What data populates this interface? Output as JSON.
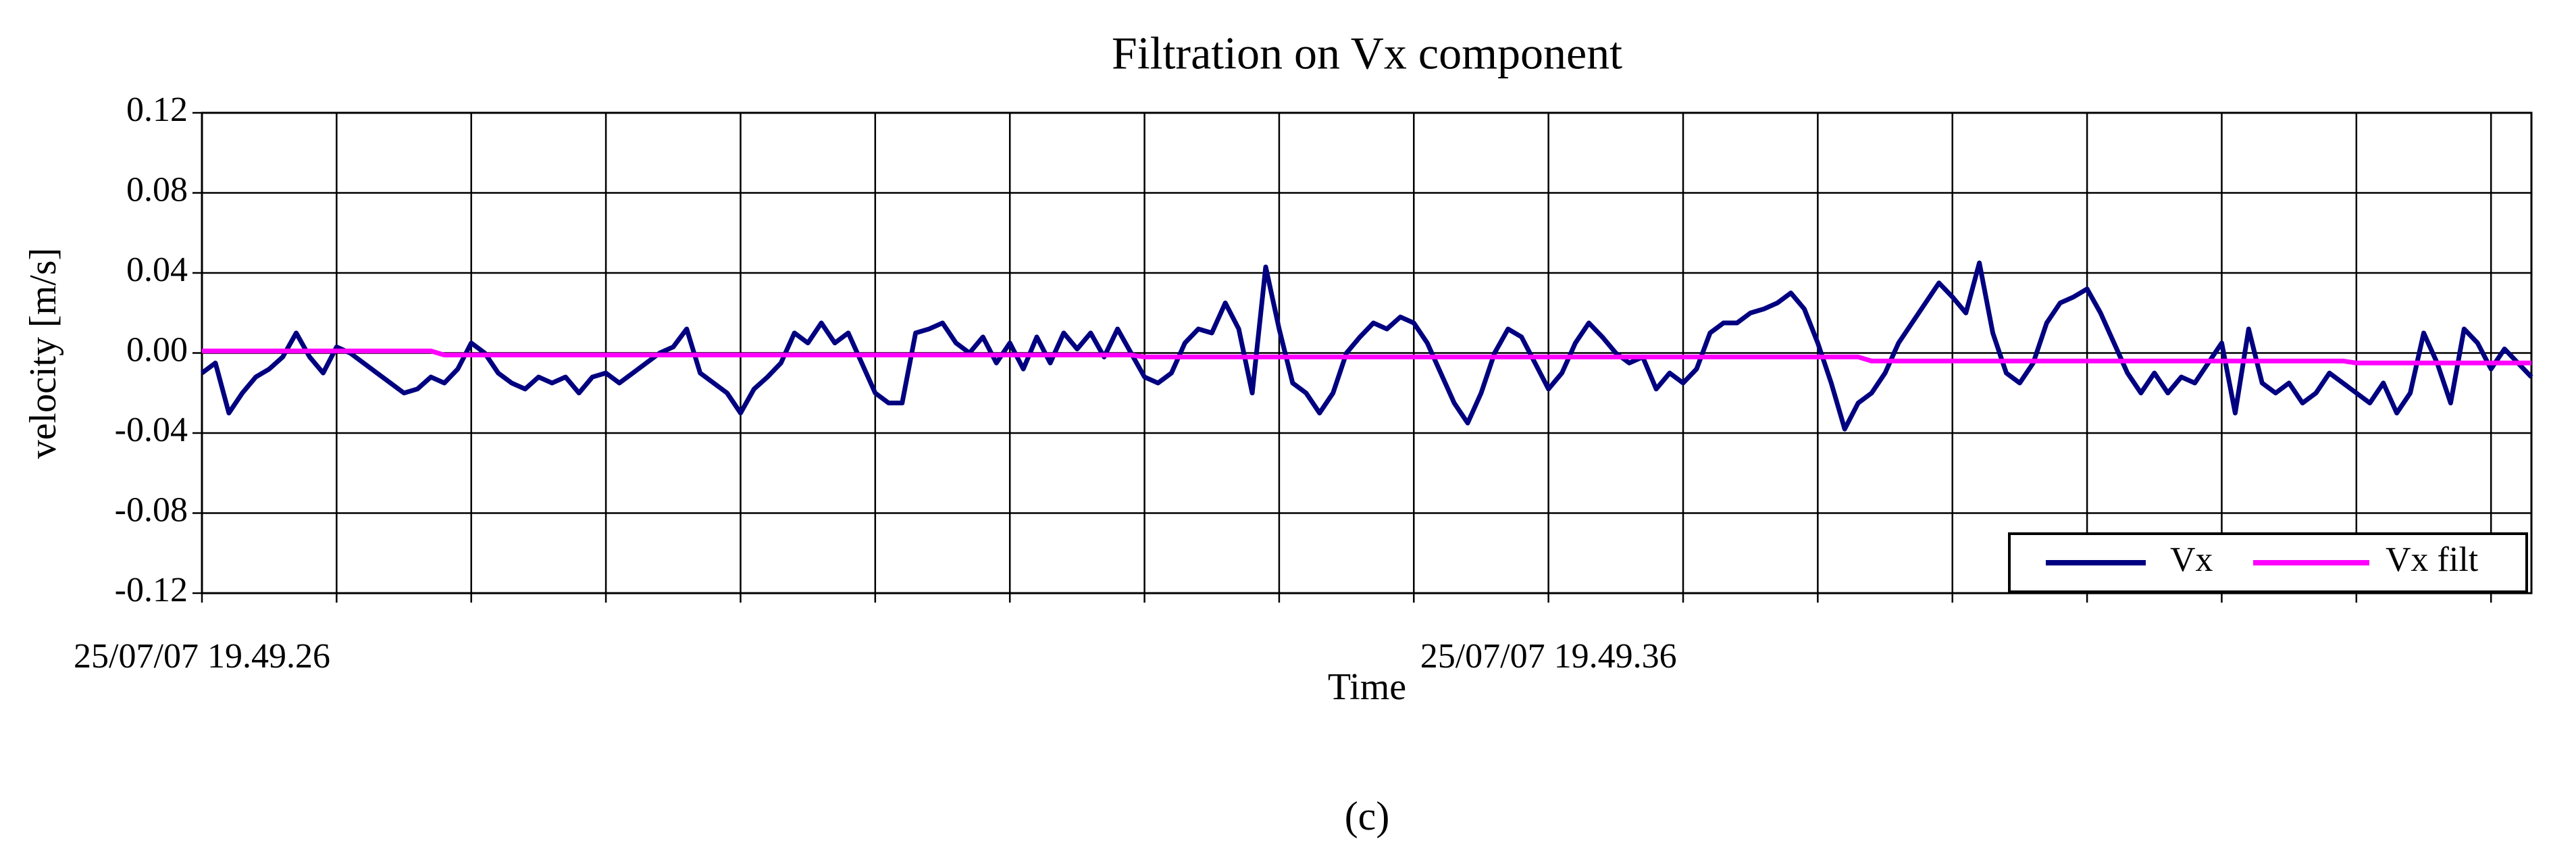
{
  "chart_data": {
    "type": "line",
    "title": "Filtration on Vx component",
    "x_label": "Time",
    "y_label": "velocity [m/s]",
    "caption": "(c)",
    "categories": [
      "25/07/07 19.49.26",
      null,
      null,
      null,
      null,
      null,
      null,
      null,
      null,
      null,
      null,
      null,
      null,
      null,
      null,
      null,
      null,
      null,
      null,
      null,
      null,
      null,
      null,
      null,
      null,
      null,
      null,
      null,
      null,
      null,
      null,
      null,
      null,
      null,
      null,
      null,
      null,
      null,
      null,
      null,
      null,
      null,
      null,
      null,
      null,
      null,
      null,
      null,
      null,
      null,
      null,
      null,
      null,
      null,
      null,
      null,
      null,
      null,
      null,
      null,
      null,
      null,
      null,
      null,
      null,
      null,
      null,
      null,
      null,
      null,
      null,
      null,
      null,
      null,
      null,
      null,
      null,
      null,
      null,
      null,
      null,
      null,
      null,
      null,
      null,
      null,
      null,
      null,
      null,
      null,
      null,
      null,
      null,
      null,
      null,
      null,
      null,
      null,
      null,
      null,
      "25/07/07 19.49.36",
      null,
      null,
      null,
      null,
      null,
      null,
      null,
      null,
      null,
      null,
      null,
      null,
      null,
      null,
      null,
      null,
      null,
      null,
      null,
      null,
      null,
      null,
      null,
      null,
      null,
      null,
      null,
      null,
      null,
      null,
      null,
      null,
      null,
      null,
      null,
      null,
      null,
      null,
      null,
      null,
      null,
      null,
      null,
      null,
      null,
      null,
      null,
      null,
      null,
      null,
      null,
      null,
      null,
      null,
      null,
      null,
      null,
      null,
      null,
      null,
      null,
      null,
      null,
      null,
      null,
      null,
      null,
      null,
      null,
      null,
      null,
      null,
      null
    ],
    "series": [
      {
        "name": "Vx",
        "color": "#000080",
        "values": [
          -0.01,
          -0.005,
          -0.03,
          -0.02,
          -0.012,
          -0.008,
          -0.002,
          0.01,
          -0.002,
          -0.01,
          0.003,
          0,
          -0.005,
          -0.01,
          -0.015,
          -0.02,
          -0.018,
          -0.012,
          -0.015,
          -0.008,
          0.005,
          0,
          -0.01,
          -0.015,
          -0.018,
          -0.012,
          -0.015,
          -0.012,
          -0.02,
          -0.012,
          -0.01,
          -0.015,
          -0.01,
          -0.005,
          0,
          0.003,
          0.012,
          -0.01,
          -0.015,
          -0.02,
          -0.03,
          -0.018,
          -0.012,
          -0.005,
          0.01,
          0.005,
          0.015,
          0.005,
          0.01,
          -0.005,
          -0.02,
          -0.025,
          -0.025,
          0.01,
          0.012,
          0.015,
          0.005,
          0,
          0.008,
          -0.005,
          0.005,
          -0.008,
          0.008,
          -0.005,
          0.01,
          0.002,
          0.01,
          -0.002,
          0.012,
          0,
          -0.012,
          -0.015,
          -0.01,
          0.005,
          0.012,
          0.01,
          0.025,
          0.012,
          -0.02,
          0.043,
          0.012,
          -0.015,
          -0.02,
          -0.03,
          -0.02,
          0,
          0.008,
          0.015,
          0.012,
          0.018,
          0.015,
          0.005,
          -0.01,
          -0.025,
          -0.035,
          -0.02,
          0,
          0.012,
          0.008,
          -0.005,
          -0.018,
          -0.01,
          0.005,
          0.015,
          0.008,
          0,
          -0.005,
          -0.002,
          -0.018,
          -0.01,
          -0.015,
          -0.008,
          0.01,
          0.015,
          0.015,
          0.02,
          0.022,
          0.025,
          0.03,
          0.022,
          0.005,
          -0.015,
          -0.038,
          -0.025,
          -0.02,
          -0.01,
          0.005,
          0.015,
          0.025,
          0.035,
          0.028,
          0.02,
          0.045,
          0.01,
          -0.01,
          -0.015,
          -0.005,
          0.015,
          0.025,
          0.028,
          0.032,
          0.02,
          0.005,
          -0.01,
          -0.02,
          -0.01,
          -0.02,
          -0.012,
          -0.015,
          -0.005,
          0.005,
          -0.03,
          0.012,
          -0.015,
          -0.02,
          -0.015,
          -0.025,
          -0.02,
          -0.01,
          -0.015,
          -0.02,
          -0.025,
          -0.015,
          -0.03,
          -0.02,
          0.01,
          -0.005,
          -0.025,
          0.012,
          0.005,
          -0.008,
          0.002,
          -0.005,
          -0.012
        ]
      },
      {
        "name": "Vx filt",
        "color": "#ff00ff",
        "values": [
          0.001,
          0.001,
          0.001,
          0.001,
          0.001,
          0.001,
          0.001,
          0.001,
          0.001,
          0.001,
          0.001,
          0.001,
          0.001,
          0.001,
          0.001,
          0.001,
          0.001,
          0.001,
          -0.001,
          -0.001,
          -0.001,
          -0.001,
          -0.001,
          -0.001,
          -0.001,
          -0.001,
          -0.001,
          -0.001,
          -0.001,
          -0.001,
          -0.001,
          -0.001,
          -0.001,
          -0.001,
          -0.001,
          -0.001,
          -0.001,
          -0.001,
          -0.001,
          -0.001,
          -0.001,
          -0.001,
          -0.001,
          -0.001,
          -0.001,
          -0.001,
          -0.001,
          -0.001,
          -0.001,
          -0.001,
          -0.001,
          -0.001,
          -0.001,
          -0.001,
          -0.001,
          -0.001,
          -0.001,
          -0.001,
          -0.001,
          -0.001,
          -0.001,
          -0.001,
          -0.001,
          -0.001,
          -0.001,
          -0.001,
          -0.001,
          -0.001,
          -0.001,
          -0.001,
          -0.002,
          -0.002,
          -0.002,
          -0.002,
          -0.002,
          -0.002,
          -0.002,
          -0.002,
          -0.002,
          -0.002,
          -0.002,
          -0.002,
          -0.002,
          -0.002,
          -0.002,
          -0.002,
          -0.002,
          -0.002,
          -0.002,
          -0.002,
          -0.002,
          -0.002,
          -0.002,
          -0.002,
          -0.002,
          -0.002,
          -0.002,
          -0.002,
          -0.002,
          -0.002,
          -0.002,
          -0.002,
          -0.002,
          -0.002,
          -0.002,
          -0.002,
          -0.002,
          -0.002,
          -0.002,
          -0.002,
          -0.002,
          -0.002,
          -0.002,
          -0.002,
          -0.002,
          -0.002,
          -0.002,
          -0.002,
          -0.002,
          -0.002,
          -0.002,
          -0.002,
          -0.002,
          -0.002,
          -0.004,
          -0.004,
          -0.004,
          -0.004,
          -0.004,
          -0.004,
          -0.004,
          -0.004,
          -0.004,
          -0.004,
          -0.004,
          -0.004,
          -0.004,
          -0.004,
          -0.004,
          -0.004,
          -0.004,
          -0.004,
          -0.004,
          -0.004,
          -0.004,
          -0.004,
          -0.004,
          -0.004,
          -0.004,
          -0.004,
          -0.004,
          -0.004,
          -0.004,
          -0.004,
          -0.004,
          -0.004,
          -0.004,
          -0.004,
          -0.004,
          -0.004,
          -0.005,
          -0.005,
          -0.005,
          -0.005,
          -0.005,
          -0.005,
          -0.005,
          -0.005,
          -0.005,
          -0.005,
          -0.005,
          -0.005,
          -0.005,
          -0.005
        ]
      }
    ],
    "ylim": [
      -0.12,
      0.12
    ],
    "yticks": [
      -0.12,
      -0.08,
      -0.04,
      {
        "value": 0,
        "label": "0.00"
      },
      0.04,
      0.08,
      0.12
    ],
    "grid": true,
    "legend": "lower right"
  }
}
